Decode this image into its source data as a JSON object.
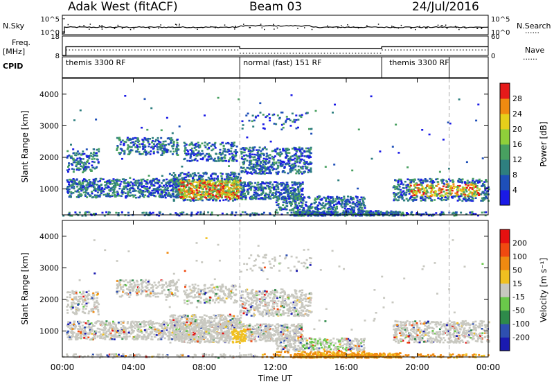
{
  "header": {
    "station": "Adak West (fitACF)",
    "beam": "Beam 03",
    "date": "24/Jul/2016"
  },
  "side_labels": {
    "nsky": "N.Sky",
    "freq": "Freq.",
    "freq_unit": "[MHz]",
    "cpid": "CPID",
    "nsearch": "N.Search",
    "nave": "Nave",
    "dotted_key": "......"
  },
  "cpid_segments": [
    {
      "label": "themis 3300 RF",
      "start_hour": 0
    },
    {
      "label": "normal (fast) 151 RF",
      "start_hour": 10
    },
    {
      "label": "themis 3300 RF",
      "start_hour": 18
    }
  ],
  "chart_data": [
    {
      "type": "line",
      "name": "noise",
      "title": "",
      "left_label": "N.Sky",
      "right_label": "N.Search",
      "left_ticks": [
        "10^5",
        "10^0"
      ],
      "right_ticks": [
        "10^5",
        "10^0"
      ],
      "x_range_hours": [
        0,
        24
      ]
    },
    {
      "type": "line",
      "name": "frequency",
      "left_label": "Freq. [MHz]",
      "right_label": "Nave",
      "left_ticks": [
        18,
        8
      ],
      "right_ticks": [
        60,
        0
      ],
      "series": [
        {
          "name": "Freq.",
          "x_hours": [
            0,
            0.2,
            10,
            18,
            24
          ],
          "values": [
            8,
            12.5,
            11.6,
            12.5,
            12.5
          ]
        },
        {
          "name": "Nave",
          "x_hours": [
            0,
            0.2,
            10,
            18,
            24
          ],
          "values": [
            0,
            17,
            7,
            17,
            17
          ]
        }
      ]
    },
    {
      "type": "heatmap",
      "name": "power",
      "ylabel": "Slant Range [km]",
      "y_ticks": [
        1000,
        2000,
        3000,
        4000
      ],
      "ylim": [
        180,
        4500
      ],
      "colorbar_label": "Power [dB]",
      "colorbar_ticks": [
        4,
        8,
        12,
        16,
        20,
        24,
        28
      ],
      "colorbar_range": [
        0,
        32
      ],
      "colors": [
        "#1a1ae6",
        "#1e4fb8",
        "#2e7f7f",
        "#48a060",
        "#8fcf3a",
        "#e6cf1a",
        "#f08a10",
        "#e61a1a"
      ]
    },
    {
      "type": "heatmap",
      "name": "velocity",
      "ylabel": "Slant Range [km]",
      "y_ticks": [
        1000,
        2000,
        3000,
        4000
      ],
      "ylim": [
        180,
        4500
      ],
      "xlabel": "Time UT",
      "x_ticks": [
        "00:00",
        "04:00",
        "08:00",
        "12:00",
        "16:00",
        "20:00",
        "00:00"
      ],
      "colorbar_label": "Velocity [m s⁻¹]",
      "colorbar_ticks": [
        200,
        100,
        50,
        15,
        -15,
        -50,
        -100,
        -200
      ],
      "colors": [
        "#1a1ab0",
        "#2e4fb0",
        "#2e8a4a",
        "#6ac84a",
        "#c8c8c0",
        "#f0c020",
        "#f08a10",
        "#f04a10",
        "#e61010"
      ]
    }
  ]
}
